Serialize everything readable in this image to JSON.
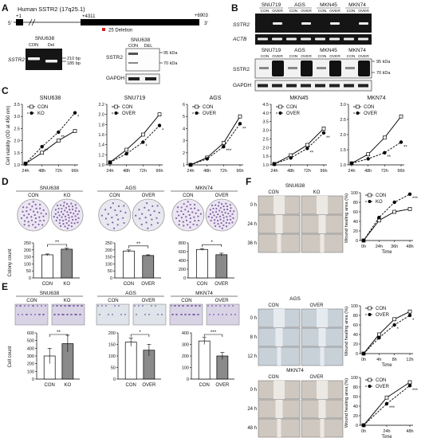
{
  "panel_letters": [
    "A",
    "B",
    "C",
    "D",
    "E",
    "F"
  ],
  "panelA": {
    "gene_title": "Human SSTR2 (17q25.1)",
    "pos_start": "+1",
    "pos_mid": "+4311",
    "pos_end": "+6903",
    "five_prime": "5'",
    "three_prime": "3'",
    "deletion_label": "25 Deletion",
    "gel1_title": "SNU638",
    "gel1_lanes": [
      "CON",
      "Del"
    ],
    "gel1_gene": "SSTR2",
    "gel1_bands": [
      "210 bp",
      "185 bp"
    ],
    "blot_title": "SNU638",
    "blot_lanes": [
      "CON",
      "DEL"
    ],
    "blot_labels": [
      "SSTR2",
      "GAPDH"
    ],
    "blot_sizes": [
      "95 kDa",
      "70 kDa"
    ]
  },
  "panelB": {
    "cell_lines": [
      "SNU719",
      "AGS",
      "MKN45",
      "MKN74"
    ],
    "lane_labels": [
      "CON",
      "OVER"
    ],
    "rt_rows": [
      "SSTR2",
      "ACTB"
    ],
    "wb_rows": [
      "SSTR2",
      "GAPDH"
    ],
    "wb_sizes": [
      "95 kDa",
      "70 kDa"
    ]
  },
  "panelC": {
    "ylabel": "Cell viability (OD at 450 nm)",
    "chart_data": [
      {
        "type": "line",
        "title": "SNU638",
        "legend": [
          "CON",
          "KO"
        ],
        "categories": [
          "24h",
          "48h",
          "72h",
          "96h"
        ],
        "ylim": [
          1.0,
          3.5
        ],
        "yticks": [
          "1.0",
          "1.5",
          "2.0",
          "2.5",
          "3.0",
          "3.5"
        ],
        "series": [
          {
            "name": "CON",
            "values": [
              1.05,
              1.5,
              2.0,
              2.4
            ]
          },
          {
            "name": "KO",
            "values": [
              1.05,
              1.75,
              2.35,
              3.15
            ]
          }
        ],
        "annotations": [
          "**",
          "**",
          "*"
        ]
      },
      {
        "type": "line",
        "title": "SNU719",
        "legend": [
          "CON",
          "OVER"
        ],
        "categories": [
          "24h",
          "48h",
          "72h",
          "96h"
        ],
        "ylim": [
          1.0,
          2.2
        ],
        "yticks": [
          "1.0",
          "1.2",
          "1.4",
          "1.6",
          "1.8",
          "2.0",
          "2.2"
        ],
        "series": [
          {
            "name": "CON",
            "values": [
              1.05,
              1.3,
              1.6,
              2.0
            ]
          },
          {
            "name": "OVER",
            "values": [
              1.05,
              1.22,
              1.45,
              1.78
            ]
          }
        ],
        "annotations": [
          "*",
          "*"
        ]
      },
      {
        "type": "line",
        "title": "AGS",
        "legend": [
          "CON",
          "OVER"
        ],
        "categories": [
          "24h",
          "48h",
          "72h",
          "96h"
        ],
        "ylim": [
          1,
          6
        ],
        "yticks": [
          "1",
          "2",
          "3",
          "4",
          "5",
          "6"
        ],
        "series": [
          {
            "name": "CON",
            "values": [
              1.0,
              1.6,
              2.8,
              5.0
            ]
          },
          {
            "name": "OVER",
            "values": [
              1.0,
              1.5,
              2.5,
              4.4
            ]
          }
        ],
        "annotations": [
          "***",
          "**"
        ]
      },
      {
        "type": "line",
        "title": "MKN45",
        "legend": [
          "CON",
          "OVER"
        ],
        "categories": [
          "24h",
          "48h",
          "72h",
          "96h"
        ],
        "ylim": [
          1.0,
          4.5
        ],
        "yticks": [
          "1.0",
          "1.5",
          "2.0",
          "2.5",
          "3.0",
          "3.5",
          "4.0",
          "4.5"
        ],
        "series": [
          {
            "name": "CON",
            "values": [
              1.05,
              1.55,
              2.15,
              3.1
            ]
          },
          {
            "name": "OVER",
            "values": [
              1.05,
              1.4,
              1.95,
              2.85
            ]
          }
        ],
        "annotations": [
          "**",
          "**"
        ]
      },
      {
        "type": "line",
        "title": "MKN74",
        "legend": [
          "CON",
          "OVER"
        ],
        "categories": [
          "24h",
          "48h",
          "72h",
          "96h"
        ],
        "ylim": [
          1.0,
          3.0
        ],
        "yticks": [
          "1.0",
          "1.5",
          "2.0",
          "2.5",
          "3.0"
        ],
        "series": [
          {
            "name": "CON",
            "values": [
              1.05,
              1.35,
              1.9,
              2.6
            ]
          },
          {
            "name": "OVER",
            "values": [
              1.05,
              1.2,
              1.4,
              1.75
            ]
          }
        ],
        "annotations": [
          "**",
          "**"
        ]
      }
    ]
  },
  "panelD": {
    "ylabel": "Colony count",
    "chart_data": [
      {
        "type": "bar",
        "title": "SNU638",
        "categories": [
          "CON",
          "KO"
        ],
        "values": [
          165,
          205
        ],
        "errors": [
          6,
          8
        ],
        "ylim": [
          0,
          250
        ],
        "yticks": [
          "0",
          "50",
          "100",
          "150",
          "200",
          "250"
        ],
        "sig": "**"
      },
      {
        "type": "bar",
        "title": "AGS",
        "categories": [
          "CON",
          "OVER"
        ],
        "values": [
          192,
          160
        ],
        "errors": [
          8,
          5
        ],
        "ylim": [
          0,
          250
        ],
        "yticks": [
          "0",
          "50",
          "100",
          "150",
          "200",
          "250"
        ],
        "sig": "**"
      },
      {
        "type": "bar",
        "title": "MKN74",
        "categories": [
          "CON",
          "OVER"
        ],
        "values": [
          650,
          530
        ],
        "errors": [
          20,
          35
        ],
        "ylim": [
          0,
          800
        ],
        "yticks": [
          "0",
          "200",
          "400",
          "600",
          "800"
        ],
        "sig": "*"
      }
    ]
  },
  "panelE": {
    "ylabel": "Cell count",
    "chart_data": [
      {
        "type": "bar",
        "title": "SNU638",
        "categories": [
          "CON",
          "KO"
        ],
        "values": [
          300,
          460
        ],
        "errors": [
          100,
          110
        ],
        "ylim": [
          0,
          600
        ],
        "yticks": [
          "0",
          "100",
          "200",
          "300",
          "400",
          "500",
          "600"
        ],
        "sig": "**"
      },
      {
        "type": "bar",
        "title": "AGS",
        "categories": [
          "CON",
          "OVER"
        ],
        "values": [
          160,
          125
        ],
        "errors": [
          18,
          25
        ],
        "ylim": [
          0,
          200
        ],
        "yticks": [
          "0",
          "50",
          "100",
          "150",
          "200"
        ],
        "sig": "*"
      },
      {
        "type": "bar",
        "title": "MKN74",
        "categories": [
          "CON",
          "OVER"
        ],
        "values": [
          330,
          200
        ],
        "errors": [
          30,
          30
        ],
        "ylim": [
          0,
          400
        ],
        "yticks": [
          "0",
          "100",
          "200",
          "300",
          "400"
        ],
        "sig": "***"
      }
    ]
  },
  "panelF": {
    "ylabel": "Wound healing area (%)",
    "xlabel": "Time",
    "blocks": [
      {
        "title": "SNU638",
        "cols": [
          "CON",
          "KO"
        ],
        "rows": [
          "0 h",
          "24 h",
          "36 h"
        ]
      },
      {
        "title": "AGS",
        "cols": [
          "CON",
          "OVER"
        ],
        "rows": [
          "0 h",
          "8 h",
          "12 h"
        ]
      },
      {
        "title": "MKN74",
        "cols": [
          "CON",
          "OVER"
        ],
        "rows": [
          "0 h",
          "24 h",
          "48 h"
        ]
      }
    ],
    "chart_data": [
      {
        "type": "line",
        "legend": [
          "CON",
          "KO"
        ],
        "categories": [
          "0h",
          "24h",
          "36h",
          "48h"
        ],
        "ylim": [
          0,
          100
        ],
        "yticks": [
          "0",
          "20",
          "40",
          "60",
          "80",
          "100"
        ],
        "series": [
          {
            "name": "CON",
            "values": [
              0,
              42,
              60,
              66
            ]
          },
          {
            "name": "KO",
            "values": [
              0,
              48,
              80,
              97
            ]
          }
        ],
        "annotations": [
          "***"
        ]
      },
      {
        "type": "line",
        "legend": [
          "CON",
          "OVER"
        ],
        "categories": [
          "0h",
          "4h",
          "8h",
          "12h"
        ],
        "ylim": [
          0,
          100
        ],
        "yticks": [
          "0",
          "20",
          "40",
          "60",
          "80",
          "100"
        ],
        "series": [
          {
            "name": "CON",
            "values": [
              0,
              40,
              72,
              88
            ]
          },
          {
            "name": "OVER",
            "values": [
              0,
              33,
              60,
              80
            ]
          }
        ],
        "annotations": [
          "*",
          "*"
        ]
      },
      {
        "type": "line",
        "legend": [
          "CON",
          "OVER"
        ],
        "categories": [
          "0h",
          "24h",
          "48h"
        ],
        "ylim": [
          0,
          100
        ],
        "yticks": [
          "0",
          "20",
          "40",
          "60",
          "80",
          "100"
        ],
        "series": [
          {
            "name": "CON",
            "values": [
              0,
              58,
              90
            ]
          },
          {
            "name": "OVER",
            "values": [
              0,
              45,
              83
            ]
          }
        ],
        "annotations": [
          "***",
          "***"
        ]
      }
    ]
  },
  "colors": {
    "line": "#111111",
    "bar_con": "#ffffff",
    "bar_exp": "#8a8a8a",
    "gel_bg": "#151515",
    "band": "#f0f0f0",
    "stain": "#5a3a8a",
    "deletion": "#d22222"
  }
}
